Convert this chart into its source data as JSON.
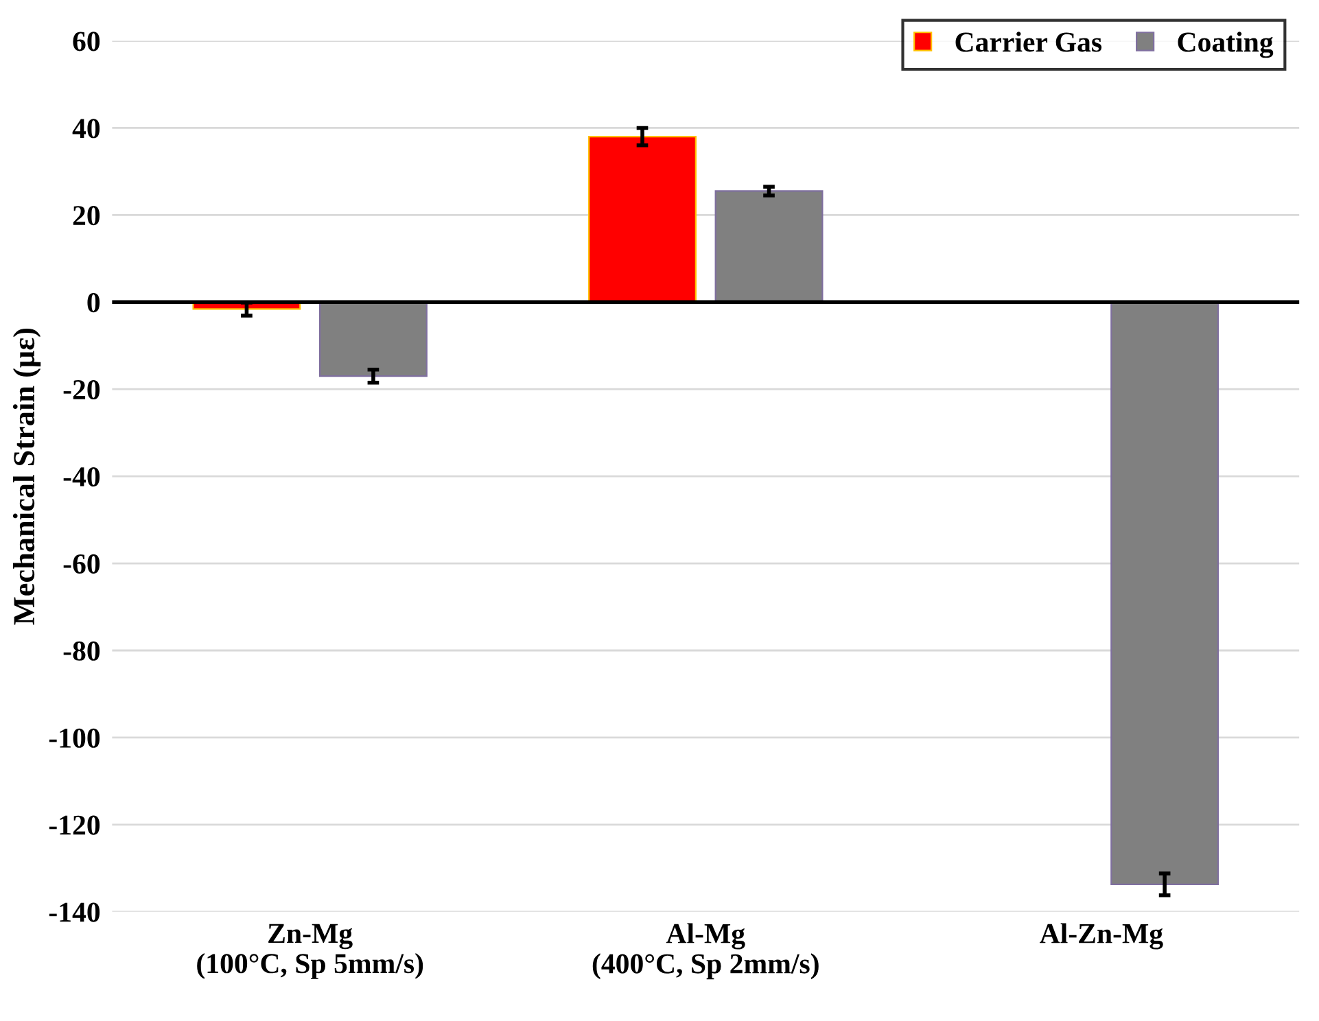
{
  "chart_data": {
    "type": "bar",
    "ylabel": "Mechanical Strain (με)",
    "categories": [
      "Zn-Mg\n(100°C, Sp 5mm/s)",
      "Al-Mg\n(400°C, Sp 2mm/s)",
      "Al-Zn-Mg"
    ],
    "series": [
      {
        "name": "Carrier Gas",
        "color": "#ff0000",
        "values": [
          -1.6,
          38,
          null
        ],
        "errors": [
          1.5,
          2,
          null
        ]
      },
      {
        "name": "Coating",
        "color": "#808080",
        "values": [
          -17,
          25.5,
          -133.7
        ],
        "errors": [
          1.5,
          1,
          2.5
        ]
      }
    ],
    "ylim": [
      -140,
      60
    ],
    "yticks": [
      -140,
      -120,
      -100,
      -80,
      -60,
      -40,
      -20,
      0,
      20,
      40,
      60
    ],
    "grid": "y",
    "legend": "top right"
  }
}
